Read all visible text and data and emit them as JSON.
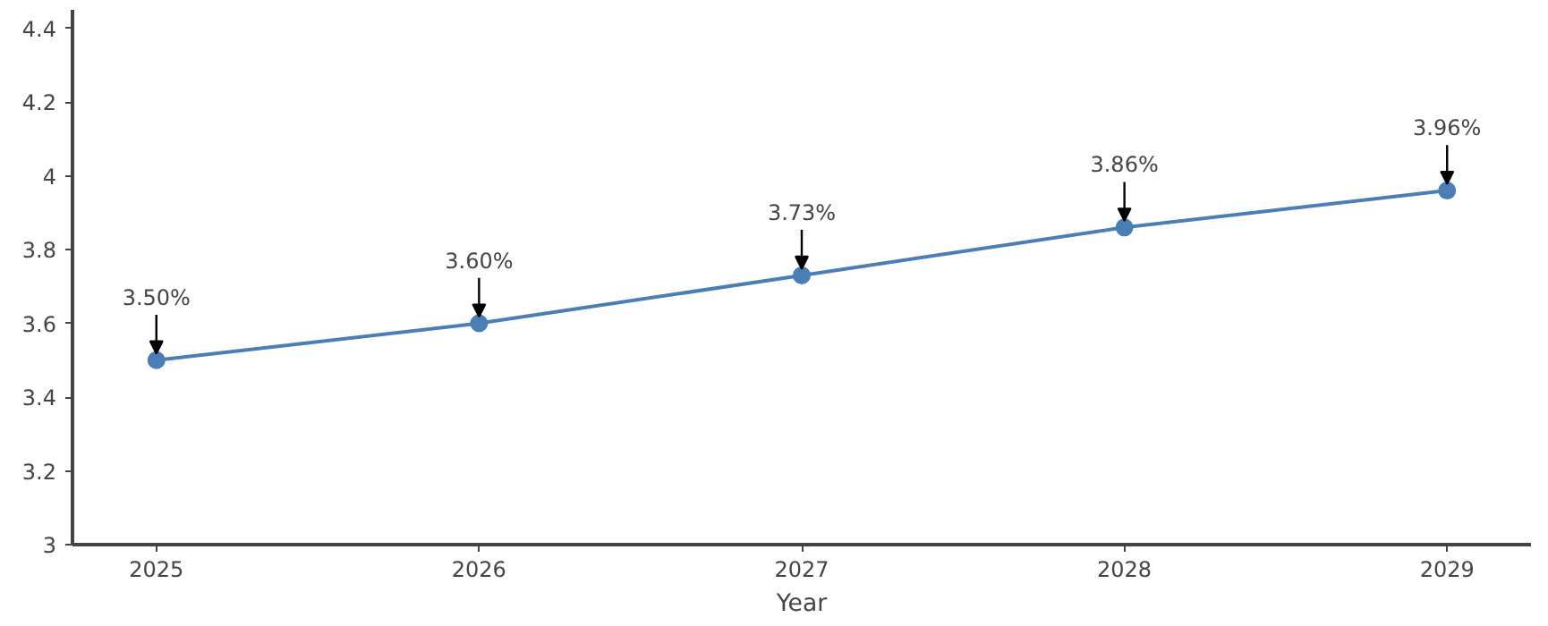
{
  "chart_data": {
    "type": "line",
    "xlabel": "Year",
    "x": [
      2025,
      2026,
      2027,
      2028,
      2029
    ],
    "series": [
      {
        "color": "#4a7fb5",
        "values": [
          3.5,
          3.6,
          3.73,
          3.86,
          3.96
        ],
        "value_labels": [
          "3.50%",
          "3.60%",
          "3.73%",
          "3.86%",
          "3.96%"
        ]
      }
    ],
    "xlim": [
      2024.74,
      2029.26
    ],
    "ylim": [
      3,
      4.45
    ],
    "xticks": [
      2025,
      2026,
      2027,
      2028,
      2029
    ],
    "yticks": [
      3,
      3.2,
      3.4,
      3.6,
      3.8,
      4,
      4.2,
      4.4
    ],
    "grid": false,
    "marker": "circle",
    "line_style": "solid"
  }
}
